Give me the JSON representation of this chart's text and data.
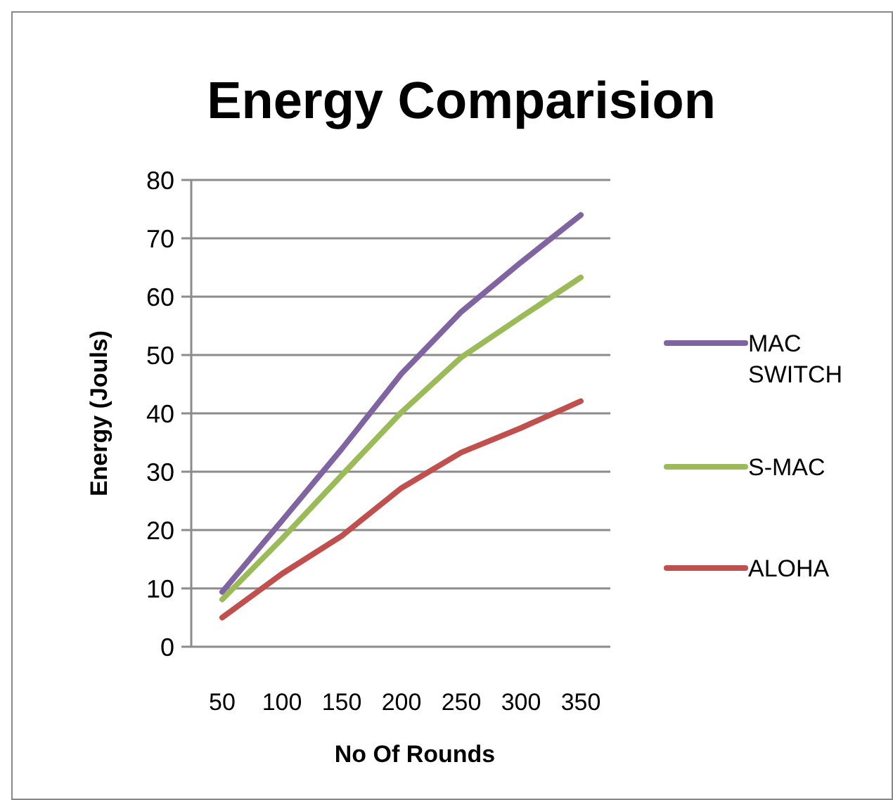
{
  "chart_data": {
    "type": "line",
    "title": "Energy Comparision",
    "xlabel": "No Of Rounds",
    "ylabel": "Energy (Jouls)",
    "categories": [
      "50",
      "100",
      "150",
      "200",
      "250",
      "300",
      "350"
    ],
    "series": [
      {
        "name": "MAC SWITCH",
        "color": "#8064a2",
        "values": [
          9.4,
          21.6,
          33.9,
          46.8,
          57.4,
          65.9,
          74
        ]
      },
      {
        "name": "S-MAC",
        "color": "#9bbb59",
        "values": [
          8.1,
          18.5,
          29.4,
          40.2,
          49.6,
          56.5,
          63.3
        ]
      },
      {
        "name": "ALOHA",
        "color": "#c0504d",
        "values": [
          5,
          12.5,
          19,
          27.2,
          33.3,
          37.5,
          42.1
        ]
      }
    ],
    "ylim": [
      0,
      80
    ],
    "yticks": [
      0,
      10,
      20,
      30,
      40,
      50,
      60,
      70,
      80
    ],
    "grid": "y",
    "legend": "right",
    "marker": "none",
    "line_style": "solid"
  }
}
